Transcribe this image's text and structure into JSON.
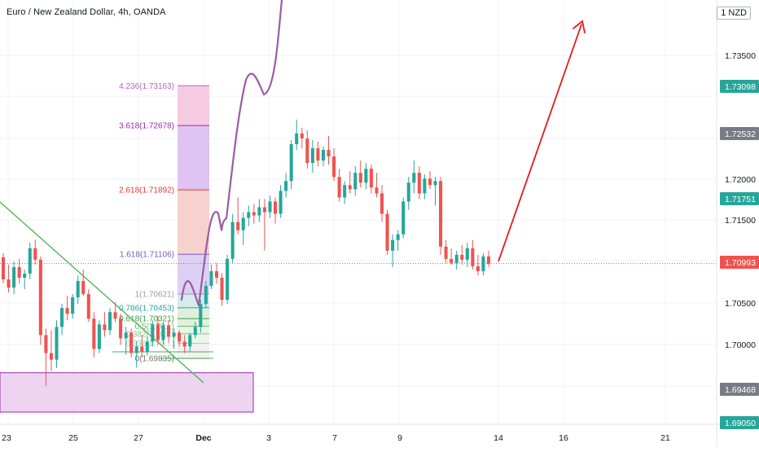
{
  "header": {
    "title": "Euro / New Zealand Dollar, 4h, OANDA",
    "currency": "1 NZD"
  },
  "colors": {
    "up": "#26a69a",
    "down": "#ef5350",
    "grid": "#f0f3fa",
    "last_price": "#26a69a",
    "arrow": "#e61919",
    "projection": "#9c5ba8",
    "trendline": "#4caf50",
    "zone_fill": "#e8c6ec",
    "zone_stroke": "#9c27b0"
  },
  "chart_data": {
    "type": "candlestick",
    "symbol": "EURNZD",
    "interval": "4h",
    "y_ticks": [
      "1.73500",
      "1.72000",
      "1.71500",
      "1.70500",
      "1.70000"
    ],
    "x_ticks": [
      "23",
      "25",
      "27",
      "Dec",
      "3",
      "7",
      "9",
      "14",
      "16",
      "21"
    ],
    "price_labels": [
      {
        "value": "1.73098",
        "style": "green"
      },
      {
        "value": "1.72532",
        "style": "gray"
      },
      {
        "value": "1.71751",
        "style": "green"
      },
      {
        "value": "1.70993",
        "style": "red"
      },
      {
        "value": "1.69468",
        "style": "gray"
      },
      {
        "value": "1.69050",
        "style": "green"
      }
    ],
    "current_price": 1.70993,
    "fib_levels": [
      {
        "label": "4.236(1.73163)",
        "price": 1.73163
      },
      {
        "label": "3.618(1.72678)",
        "price": 1.72678
      },
      {
        "label": "2.618(1.71892)",
        "price": 1.71892
      },
      {
        "label": "1.618(1.71106)",
        "price": 1.71106
      },
      {
        "label": "1(1.70621)",
        "price": 1.70621
      },
      {
        "label": "0.786(1.70453)",
        "price": 1.70453
      },
      {
        "label": "0.618(1.70321)",
        "price": 1.70321
      },
      {
        "label": "0.5(1.70...)",
        "price": 1.70228
      },
      {
        "label": "0.382(1.70...)",
        "price": 1.70135
      },
      {
        "label": "0.236(1.70...)",
        "price": 1.7002
      },
      {
        "label": "0(1.69835)",
        "price": 1.69835
      }
    ],
    "demand_zone": {
      "top": 1.6966,
      "bottom": 1.6918
    },
    "candles": [
      {
        "o": 1.7107,
        "h": 1.7112,
        "l": 1.7075,
        "c": 1.708
      },
      {
        "o": 1.708,
        "h": 1.7098,
        "l": 1.7064,
        "c": 1.707
      },
      {
        "o": 1.707,
        "h": 1.7102,
        "l": 1.7062,
        "c": 1.7095
      },
      {
        "o": 1.7095,
        "h": 1.7105,
        "l": 1.7075,
        "c": 1.7082
      },
      {
        "o": 1.7082,
        "h": 1.7092,
        "l": 1.7068,
        "c": 1.7087
      },
      {
        "o": 1.7087,
        "h": 1.7125,
        "l": 1.708,
        "c": 1.7118
      },
      {
        "o": 1.7118,
        "h": 1.7128,
        "l": 1.7098,
        "c": 1.7104
      },
      {
        "o": 1.7104,
        "h": 1.7108,
        "l": 1.7,
        "c": 1.7012
      },
      {
        "o": 1.7012,
        "h": 1.702,
        "l": 1.695,
        "c": 1.699
      },
      {
        "o": 1.699,
        "h": 1.7018,
        "l": 1.6968,
        "c": 1.6982
      },
      {
        "o": 1.6982,
        "h": 1.703,
        "l": 1.6972,
        "c": 1.7022
      },
      {
        "o": 1.7022,
        "h": 1.705,
        "l": 1.7012,
        "c": 1.7045
      },
      {
        "o": 1.7045,
        "h": 1.706,
        "l": 1.703,
        "c": 1.7038
      },
      {
        "o": 1.7038,
        "h": 1.7062,
        "l": 1.7032,
        "c": 1.7058
      },
      {
        "o": 1.7058,
        "h": 1.7085,
        "l": 1.705,
        "c": 1.7078
      },
      {
        "o": 1.7078,
        "h": 1.7092,
        "l": 1.706,
        "c": 1.7062
      },
      {
        "o": 1.7062,
        "h": 1.7068,
        "l": 1.7028,
        "c": 1.7032
      },
      {
        "o": 1.7032,
        "h": 1.704,
        "l": 1.6985,
        "c": 1.6995
      },
      {
        "o": 1.6995,
        "h": 1.703,
        "l": 1.699,
        "c": 1.7025
      },
      {
        "o": 1.7025,
        "h": 1.704,
        "l": 1.701,
        "c": 1.7018
      },
      {
        "o": 1.7018,
        "h": 1.7045,
        "l": 1.7012,
        "c": 1.704
      },
      {
        "o": 1.704,
        "h": 1.7052,
        "l": 1.7028,
        "c": 1.7032
      },
      {
        "o": 1.7032,
        "h": 1.7038,
        "l": 1.7,
        "c": 1.7008
      },
      {
        "o": 1.7008,
        "h": 1.7022,
        "l": 1.6988,
        "c": 1.7015
      },
      {
        "o": 1.7015,
        "h": 1.702,
        "l": 1.6985,
        "c": 1.699
      },
      {
        "o": 1.699,
        "h": 1.7005,
        "l": 1.6972,
        "c": 1.6998
      },
      {
        "o": 1.6998,
        "h": 1.7012,
        "l": 1.6985,
        "c": 1.6992
      },
      {
        "o": 1.6992,
        "h": 1.701,
        "l": 1.6987,
        "c": 1.7004
      },
      {
        "o": 1.7004,
        "h": 1.703,
        "l": 1.6998,
        "c": 1.7025
      },
      {
        "o": 1.7025,
        "h": 1.7035,
        "l": 1.7,
        "c": 1.7006
      },
      {
        "o": 1.7006,
        "h": 1.7028,
        "l": 1.7,
        "c": 1.7024
      },
      {
        "o": 1.7024,
        "h": 1.703,
        "l": 1.7002,
        "c": 1.701
      },
      {
        "o": 1.701,
        "h": 1.702,
        "l": 1.6995,
        "c": 1.7015
      },
      {
        "o": 1.7015,
        "h": 1.7018,
        "l": 1.6998,
        "c": 1.7004
      },
      {
        "o": 1.7004,
        "h": 1.7012,
        "l": 1.699,
        "c": 1.6998
      },
      {
        "o": 1.6998,
        "h": 1.7015,
        "l": 1.6992,
        "c": 1.7012
      },
      {
        "o": 1.7012,
        "h": 1.7028,
        "l": 1.7008,
        "c": 1.7022
      },
      {
        "o": 1.7022,
        "h": 1.7055,
        "l": 1.7015,
        "c": 1.705
      },
      {
        "o": 1.705,
        "h": 1.7078,
        "l": 1.7045,
        "c": 1.7072
      },
      {
        "o": 1.7072,
        "h": 1.7098,
        "l": 1.7068,
        "c": 1.709
      },
      {
        "o": 1.709,
        "h": 1.71,
        "l": 1.7075,
        "c": 1.7082
      },
      {
        "o": 1.7082,
        "h": 1.7088,
        "l": 1.7048,
        "c": 1.7055
      },
      {
        "o": 1.7055,
        "h": 1.711,
        "l": 1.705,
        "c": 1.7105
      },
      {
        "o": 1.7105,
        "h": 1.716,
        "l": 1.71,
        "c": 1.715
      },
      {
        "o": 1.715,
        "h": 1.718,
        "l": 1.7135,
        "c": 1.714
      },
      {
        "o": 1.714,
        "h": 1.7162,
        "l": 1.7122,
        "c": 1.7155
      },
      {
        "o": 1.7155,
        "h": 1.717,
        "l": 1.7145,
        "c": 1.7162
      },
      {
        "o": 1.7162,
        "h": 1.7172,
        "l": 1.7148,
        "c": 1.7158
      },
      {
        "o": 1.7158,
        "h": 1.7178,
        "l": 1.715,
        "c": 1.7168
      },
      {
        "o": 1.7168,
        "h": 1.7178,
        "l": 1.7115,
        "c": 1.7162
      },
      {
        "o": 1.7162,
        "h": 1.7182,
        "l": 1.7155,
        "c": 1.7175
      },
      {
        "o": 1.7175,
        "h": 1.718,
        "l": 1.7148,
        "c": 1.716
      },
      {
        "o": 1.716,
        "h": 1.7195,
        "l": 1.7155,
        "c": 1.7188
      },
      {
        "o": 1.7188,
        "h": 1.721,
        "l": 1.718,
        "c": 1.72
      },
      {
        "o": 1.72,
        "h": 1.725,
        "l": 1.719,
        "c": 1.7245
      },
      {
        "o": 1.7245,
        "h": 1.7275,
        "l": 1.7238,
        "c": 1.7258
      },
      {
        "o": 1.7258,
        "h": 1.7265,
        "l": 1.724,
        "c": 1.7252
      },
      {
        "o": 1.7252,
        "h": 1.7262,
        "l": 1.7215,
        "c": 1.7222
      },
      {
        "o": 1.7222,
        "h": 1.725,
        "l": 1.721,
        "c": 1.724
      },
      {
        "o": 1.724,
        "h": 1.7248,
        "l": 1.7218,
        "c": 1.7225
      },
      {
        "o": 1.7225,
        "h": 1.7242,
        "l": 1.7218,
        "c": 1.7238
      },
      {
        "o": 1.7238,
        "h": 1.7255,
        "l": 1.722,
        "c": 1.723
      },
      {
        "o": 1.723,
        "h": 1.724,
        "l": 1.72,
        "c": 1.7205
      },
      {
        "o": 1.7205,
        "h": 1.7215,
        "l": 1.7175,
        "c": 1.718
      },
      {
        "o": 1.718,
        "h": 1.72,
        "l": 1.7172,
        "c": 1.7195
      },
      {
        "o": 1.7195,
        "h": 1.7212,
        "l": 1.7185,
        "c": 1.719
      },
      {
        "o": 1.719,
        "h": 1.7218,
        "l": 1.7182,
        "c": 1.721
      },
      {
        "o": 1.721,
        "h": 1.7225,
        "l": 1.7192,
        "c": 1.7198
      },
      {
        "o": 1.7198,
        "h": 1.7222,
        "l": 1.719,
        "c": 1.7215
      },
      {
        "o": 1.7215,
        "h": 1.722,
        "l": 1.7185,
        "c": 1.7192
      },
      {
        "o": 1.7192,
        "h": 1.721,
        "l": 1.718,
        "c": 1.7185
      },
      {
        "o": 1.7185,
        "h": 1.7195,
        "l": 1.715,
        "c": 1.716
      },
      {
        "o": 1.716,
        "h": 1.7165,
        "l": 1.711,
        "c": 1.7115
      },
      {
        "o": 1.7115,
        "h": 1.7135,
        "l": 1.7095,
        "c": 1.7128
      },
      {
        "o": 1.7128,
        "h": 1.714,
        "l": 1.7115,
        "c": 1.7135
      },
      {
        "o": 1.7135,
        "h": 1.718,
        "l": 1.713,
        "c": 1.7175
      },
      {
        "o": 1.7175,
        "h": 1.7205,
        "l": 1.7165,
        "c": 1.7198
      },
      {
        "o": 1.7198,
        "h": 1.7225,
        "l": 1.7185,
        "c": 1.721
      },
      {
        "o": 1.721,
        "h": 1.7218,
        "l": 1.7178,
        "c": 1.7185
      },
      {
        "o": 1.7185,
        "h": 1.7208,
        "l": 1.7178,
        "c": 1.7203
      },
      {
        "o": 1.7203,
        "h": 1.7212,
        "l": 1.719,
        "c": 1.7195
      },
      {
        "o": 1.7195,
        "h": 1.7205,
        "l": 1.717,
        "c": 1.72
      },
      {
        "o": 1.72,
        "h": 1.7205,
        "l": 1.711,
        "c": 1.712
      },
      {
        "o": 1.712,
        "h": 1.7128,
        "l": 1.71,
        "c": 1.7105
      },
      {
        "o": 1.7105,
        "h": 1.7118,
        "l": 1.7098,
        "c": 1.71
      },
      {
        "o": 1.71,
        "h": 1.7115,
        "l": 1.7092,
        "c": 1.711
      },
      {
        "o": 1.711,
        "h": 1.7122,
        "l": 1.7098,
        "c": 1.7104
      },
      {
        "o": 1.7104,
        "h": 1.7125,
        "l": 1.7095,
        "c": 1.7118
      },
      {
        "o": 1.7118,
        "h": 1.7128,
        "l": 1.7092,
        "c": 1.7096
      },
      {
        "o": 1.7096,
        "h": 1.711,
        "l": 1.7085,
        "c": 1.709
      },
      {
        "o": 1.709,
        "h": 1.7112,
        "l": 1.7085,
        "c": 1.7108
      },
      {
        "o": 1.7108,
        "h": 1.7115,
        "l": 1.7095,
        "c": 1.7099
      }
    ]
  }
}
